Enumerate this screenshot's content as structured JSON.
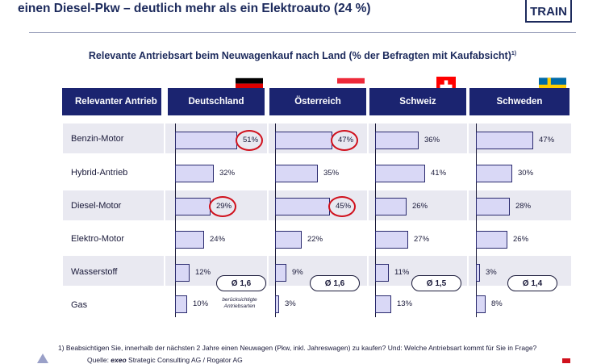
{
  "header": {
    "headline": "einen Diesel-Pkw – deutlich mehr als ein Elektroauto (24 %)",
    "logo": "TRAIN"
  },
  "subtitle": "Relevante Antriebsart beim Neuwagenkauf nach Land (% der Befragten mit Kaufabsicht)",
  "subtitle_sup": "1)",
  "table_header": "Relevanter Antrieb",
  "chart_data": {
    "type": "bar",
    "orientation": "horizontal",
    "categories": [
      "Benzin-Motor",
      "Hybrid-Antrieb",
      "Diesel-Motor",
      "Elektro-Motor",
      "Wasserstoff",
      "Gas"
    ],
    "series": [
      {
        "name": "Deutschland",
        "values": [
          51,
          32,
          29,
          24,
          12,
          10
        ],
        "labels": [
          "51%",
          "32%",
          "29%",
          "24%",
          "12%",
          "10%"
        ],
        "average": "Ø 1,6"
      },
      {
        "name": "Österreich",
        "values": [
          47,
          35,
          45,
          22,
          9,
          3
        ],
        "labels": [
          "47%",
          "35%",
          "45%",
          "22%",
          "9%",
          "3%"
        ],
        "average": "Ø 1,6"
      },
      {
        "name": "Schweiz",
        "values": [
          36,
          41,
          26,
          27,
          11,
          13
        ],
        "labels": [
          "36%",
          "41%",
          "26%",
          "27%",
          "11%",
          "13%"
        ],
        "average": "Ø 1,5"
      },
      {
        "name": "Schweden",
        "values": [
          47,
          30,
          28,
          26,
          3,
          8
        ],
        "labels": [
          "47%",
          "30%",
          "28%",
          "26%",
          "3%",
          "8%"
        ],
        "average": "Ø 1,4"
      }
    ],
    "highlighted": [
      {
        "series": "Deutschland",
        "category": "Benzin-Motor"
      },
      {
        "series": "Deutschland",
        "category": "Diesel-Motor"
      },
      {
        "series": "Österreich",
        "category": "Benzin-Motor"
      },
      {
        "series": "Österreich",
        "category": "Diesel-Motor"
      }
    ],
    "xlim": [
      0,
      100
    ],
    "bar_color": "#d9d8f6",
    "header_color": "#1b2470",
    "highlight_color": "#d0101c"
  },
  "avg_note": "berücksichtigte Antriebsarten",
  "footnote": "1)    Beabsichtigen Sie, innerhalb der nächsten 2 Jahre einen Neuwagen (Pkw, inkl. Jahreswagen) zu kaufen? Und: Welche Antriebsart kommt für Sie in Frage?",
  "source_prefix": "Quelle: ",
  "source_brand": "exeo",
  "source_rest": " Strategic Consulting AG / Rogator AG"
}
